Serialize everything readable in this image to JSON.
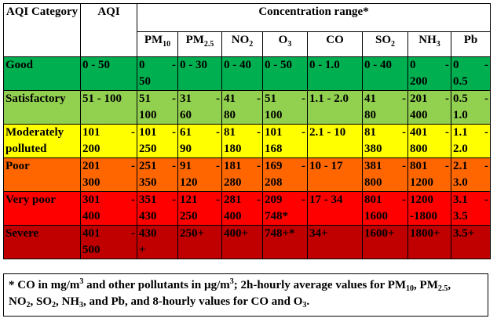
{
  "header": {
    "category": "AQI Category",
    "aqi": "AQI",
    "concentration": "Concentration range*",
    "pollutants": [
      {
        "base": "PM",
        "sub": "10"
      },
      {
        "base": "PM",
        "sub": "2.5"
      },
      {
        "base": "NO",
        "sub": "2"
      },
      {
        "base": "O",
        "sub": "3"
      },
      {
        "base": "CO",
        "sub": ""
      },
      {
        "base": "SO",
        "sub": "2"
      },
      {
        "base": "NH",
        "sub": "3"
      },
      {
        "base": "Pb",
        "sub": ""
      }
    ]
  },
  "rows": [
    {
      "category": "Good",
      "color": "#00b050",
      "aqi": [
        "0 - 50"
      ],
      "values": [
        [
          "0",
          "-",
          "50"
        ],
        [
          "0 - 30"
        ],
        [
          "0 - 40"
        ],
        [
          "0 - 50"
        ],
        [
          "0 - 1.0"
        ],
        [
          "0 - 40"
        ],
        [
          "0",
          "-",
          "200"
        ],
        [
          "0",
          "-",
          "0.5"
        ]
      ]
    },
    {
      "category": "Satisfactory",
      "color": "#92d050",
      "aqi": [
        "51 - 100"
      ],
      "values": [
        [
          "51",
          "-",
          "100"
        ],
        [
          "31",
          "-",
          "60"
        ],
        [
          "41",
          "-",
          "80"
        ],
        [
          "51",
          "-",
          "100"
        ],
        [
          "1.1 - 2.0"
        ],
        [
          "41",
          "-",
          "80"
        ],
        [
          "201",
          "-",
          "400"
        ],
        [
          "0.5",
          "-",
          "1.0"
        ]
      ]
    },
    {
      "category": "Moderately polluted",
      "color": "#ffff00",
      "aqi": [
        "101",
        "-",
        "200"
      ],
      "values": [
        [
          "101",
          "-",
          "250"
        ],
        [
          "61",
          "-",
          "90"
        ],
        [
          "81",
          "-",
          "180"
        ],
        [
          "101",
          "-",
          "168"
        ],
        [
          "2.1 - 10"
        ],
        [
          "81",
          "-",
          "380"
        ],
        [
          "401",
          "-",
          "800"
        ],
        [
          "1.1",
          "-",
          "2.0"
        ]
      ]
    },
    {
      "category": "Poor",
      "color": "#ff6600",
      "aqi": [
        "201",
        "-",
        "300"
      ],
      "values": [
        [
          "251",
          "-",
          "350"
        ],
        [
          "91",
          "-",
          "120"
        ],
        [
          "181",
          "-",
          "280"
        ],
        [
          "169",
          "-",
          "208"
        ],
        [
          "10 - 17"
        ],
        [
          "381",
          "-",
          "800"
        ],
        [
          "801",
          "-",
          "1200"
        ],
        [
          "2.1",
          "-",
          "3.0"
        ]
      ]
    },
    {
      "category": "Very poor",
      "color": "#ff0000",
      "aqi": [
        "301",
        "-",
        "400"
      ],
      "values": [
        [
          "351",
          "-",
          "430"
        ],
        [
          "121",
          "-",
          "250"
        ],
        [
          "281",
          "-",
          "400"
        ],
        [
          "209",
          "-",
          "748*"
        ],
        [
          "17 - 34"
        ],
        [
          "801",
          "-",
          "1600"
        ],
        [
          "1200",
          "",
          "-1800"
        ],
        [
          "3.1",
          "-",
          "3.5"
        ]
      ]
    },
    {
      "category": "Severe",
      "color": "#c00000",
      "aqi": [
        "401",
        "-",
        "500"
      ],
      "values": [
        [
          "430",
          "",
          "+"
        ],
        [
          "250+"
        ],
        [
          "400+"
        ],
        [
          "748+*"
        ],
        [
          "34+"
        ],
        [
          "1600+"
        ],
        [
          "1800+"
        ],
        [
          "3.5+"
        ]
      ]
    }
  ],
  "footnote": {
    "line1_a": "* CO in mg/m",
    "line1_sup": "3",
    "line1_b": " and other pollutants in µg/m",
    "line1_sup2": "3",
    "line1_c": "; 2h-hourly average values for PM",
    "line1_sub1": "10",
    "line1_d": ", PM",
    "line1_sub2": "2.5",
    "line1_e": ",",
    "line2_a": "NO",
    "line2_sub1": "2",
    "line2_b": ", SO",
    "line2_sub2": "2",
    "line2_c": ", NH",
    "line2_sub3": "3",
    "line2_d": ", and Pb, and 8-hourly values for CO and O",
    "line2_sub4": "3",
    "line2_e": "."
  }
}
